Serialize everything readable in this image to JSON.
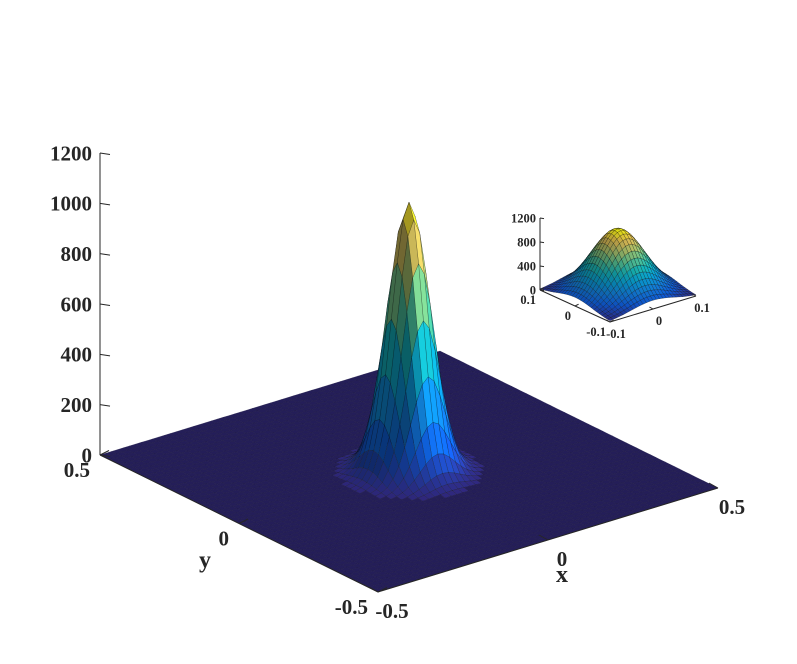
{
  "chart_data": [
    {
      "type": "surface",
      "name": "main-surface",
      "xlabel": "x",
      "ylabel": "y",
      "zlabel": "",
      "xlim": [
        -0.5,
        0.5
      ],
      "ylim": [
        -0.5,
        0.5
      ],
      "zlim": [
        0,
        1200
      ],
      "xticks": [
        -0.5,
        0,
        0.5
      ],
      "yticks": [
        -0.5,
        0,
        0.5
      ],
      "zticks": [
        0,
        200,
        400,
        600,
        800,
        1000,
        1200
      ],
      "xtick_labels": [
        "-0.5",
        "0",
        "0.5"
      ],
      "ytick_labels": [
        "-0.5",
        "0",
        "0.5"
      ],
      "ztick_labels": [
        "0",
        "200",
        "400",
        "600",
        "800",
        "1000",
        "1200"
      ],
      "function": "gaussian",
      "peak_value": 1070,
      "peak_center": [
        0,
        0
      ],
      "sigma": 0.05,
      "colormap": "parula",
      "grid": false
    },
    {
      "type": "surface",
      "name": "inset-zoom",
      "xlim": [
        -0.1,
        0.1
      ],
      "ylim": [
        -0.1,
        0.1
      ],
      "zlim": [
        0,
        1200
      ],
      "xticks": [
        -0.1,
        0,
        0.1
      ],
      "yticks": [
        -0.1,
        0,
        0.1
      ],
      "zticks": [
        0,
        400,
        800,
        1200
      ],
      "xtick_labels": [
        "-0.1",
        "0",
        "0.1"
      ],
      "ytick_labels": [
        "-0.1",
        "0",
        "0.1"
      ],
      "ztick_labels": [
        "0",
        "400",
        "800",
        "1200"
      ],
      "function": "gaussian",
      "peak_value": 1070,
      "peak_center": [
        0,
        0
      ],
      "sigma": 0.05,
      "colormap": "parula",
      "grid": false
    }
  ]
}
